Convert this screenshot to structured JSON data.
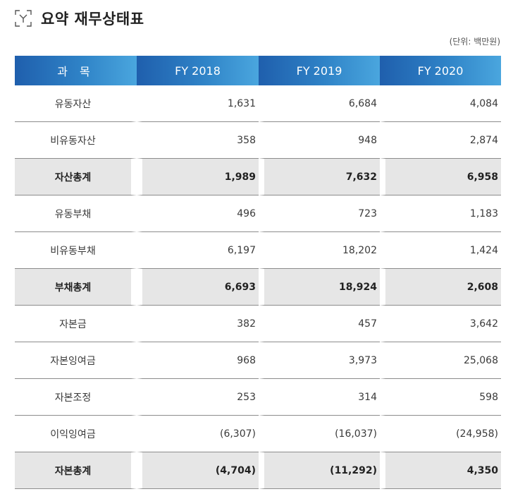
{
  "title": "요약 재무상태표",
  "unit": "(단위: 백만원)",
  "icon": "corner-bracket-y-icon",
  "header": {
    "subject": "과 목",
    "years": [
      "FY 2018",
      "FY 2019",
      "FY 2020"
    ]
  },
  "rows": [
    {
      "name": "유동자산",
      "values": [
        "1,631",
        "6,684",
        "4,084"
      ],
      "total": false
    },
    {
      "name": "비유동자산",
      "values": [
        "358",
        "948",
        "2,874"
      ],
      "total": false
    },
    {
      "name": "자산총계",
      "values": [
        "1,989",
        "7,632",
        "6,958"
      ],
      "total": true
    },
    {
      "name": "유동부채",
      "values": [
        "496",
        "723",
        "1,183"
      ],
      "total": false
    },
    {
      "name": "비유동부채",
      "values": [
        "6,197",
        "18,202",
        "1,424"
      ],
      "total": false
    },
    {
      "name": "부채총계",
      "values": [
        "6,693",
        "18,924",
        "2,608"
      ],
      "total": true
    },
    {
      "name": "자본금",
      "values": [
        "382",
        "457",
        "3,642"
      ],
      "total": false
    },
    {
      "name": "자본잉여금",
      "values": [
        "968",
        "3,973",
        "25,068"
      ],
      "total": false
    },
    {
      "name": "자본조정",
      "values": [
        "253",
        "314",
        "598"
      ],
      "total": false
    },
    {
      "name": "이익잉여금",
      "values": [
        "(6,307)",
        "(16,037)",
        "(24,958)"
      ],
      "total": false
    },
    {
      "name": "자본총계",
      "values": [
        "(4,704)",
        "(11,292)",
        "4,350"
      ],
      "total": true
    }
  ]
}
